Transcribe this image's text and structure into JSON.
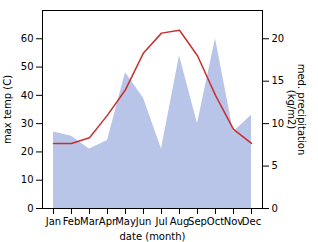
{
  "chart_data": {
    "type": "line",
    "xlabel": "date (month)",
    "ylabel": "max temp (C)",
    "y2label": "med. precipitation\n(kg/m2)",
    "categories": [
      "Jan",
      "Feb",
      "Mar",
      "Apr",
      "May",
      "Jun",
      "Jul",
      "Aug",
      "Sep",
      "Oct",
      "Nov",
      "Dec"
    ],
    "ylim": [
      0,
      70
    ],
    "yticks": [
      0,
      10,
      20,
      30,
      40,
      50,
      60
    ],
    "y2lim": [
      0,
      23.33
    ],
    "y2ticks": [
      0,
      5,
      10,
      15,
      20
    ],
    "grid": false,
    "series": [
      {
        "type": "area",
        "axis": "y2",
        "color": "#b8c4e8",
        "values": [
          9,
          8.5,
          7,
          8,
          16,
          13,
          7,
          18,
          10,
          20,
          9,
          11
        ]
      },
      {
        "type": "line",
        "color": "#c83030",
        "values": [
          23,
          23,
          25,
          33,
          42,
          55,
          62,
          63,
          54,
          40,
          28,
          23
        ]
      }
    ]
  }
}
